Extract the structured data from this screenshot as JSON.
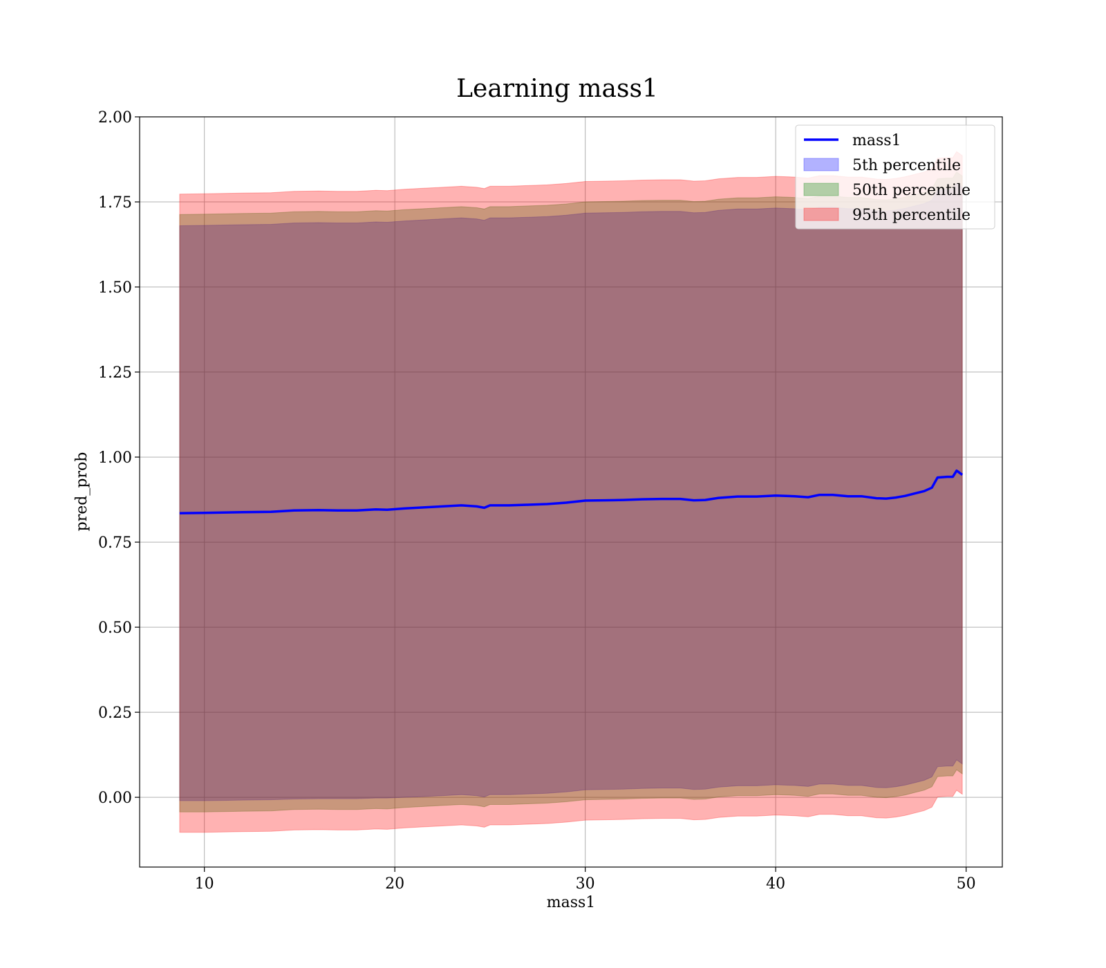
{
  "chart_data": {
    "type": "line",
    "title": "Learning mass1",
    "xlabel": "mass1",
    "ylabel": "pred_prob",
    "xlim": [
      6.6,
      51.9
    ],
    "ylim": [
      -0.205,
      2.0
    ],
    "xticks": [
      10,
      20,
      30,
      40,
      50
    ],
    "yticks": [
      0.0,
      0.25,
      0.5,
      0.75,
      1.0,
      1.25,
      1.5,
      1.75,
      2.0
    ],
    "xtick_labels": [
      "10",
      "20",
      "30",
      "40",
      "50"
    ],
    "ytick_labels": [
      "0.00",
      "0.25",
      "0.50",
      "0.75",
      "1.00",
      "1.25",
      "1.50",
      "1.75",
      "2.00"
    ],
    "grid": true,
    "legend_position": "top-right",
    "x": [
      8.7,
      10,
      11,
      12,
      13.5,
      14.7,
      16,
      17,
      18,
      19,
      19.6,
      20.5,
      21.5,
      22.5,
      23.5,
      24.3,
      24.7,
      25,
      26,
      27,
      28,
      29,
      30,
      31,
      32,
      33,
      34,
      35,
      35.7,
      36.3,
      37,
      38,
      39,
      40,
      41,
      41.7,
      42.3,
      43,
      43.8,
      44.5,
      45.3,
      45.8,
      46.3,
      46.8,
      47.3,
      47.8,
      48.2,
      48.5,
      49,
      49.3,
      49.5,
      49.8
    ],
    "series": [
      {
        "name": "mass1",
        "type": "line",
        "color": "#0000ff",
        "values": [
          0.835,
          0.836,
          0.837,
          0.838,
          0.839,
          0.843,
          0.844,
          0.843,
          0.843,
          0.846,
          0.845,
          0.849,
          0.852,
          0.855,
          0.858,
          0.855,
          0.851,
          0.858,
          0.858,
          0.86,
          0.862,
          0.866,
          0.872,
          0.873,
          0.874,
          0.876,
          0.877,
          0.877,
          0.873,
          0.874,
          0.88,
          0.884,
          0.884,
          0.887,
          0.885,
          0.882,
          0.889,
          0.889,
          0.885,
          0.885,
          0.879,
          0.878,
          0.881,
          0.886,
          0.893,
          0.9,
          0.91,
          0.94,
          0.942,
          0.942,
          0.96,
          0.948
        ]
      },
      {
        "name": "5th percentile",
        "type": "band",
        "color": "#0000ff",
        "lower": [
          -0.01,
          -0.01,
          -0.009,
          -0.008,
          -0.007,
          -0.005,
          -0.004,
          -0.004,
          -0.004,
          -0.002,
          -0.002,
          0.0,
          0.002,
          0.005,
          0.008,
          0.005,
          0.001,
          0.008,
          0.008,
          0.01,
          0.012,
          0.016,
          0.022,
          0.023,
          0.024,
          0.026,
          0.027,
          0.027,
          0.023,
          0.024,
          0.03,
          0.034,
          0.034,
          0.037,
          0.035,
          0.032,
          0.039,
          0.039,
          0.035,
          0.035,
          0.029,
          0.028,
          0.031,
          0.036,
          0.043,
          0.05,
          0.06,
          0.09,
          0.092,
          0.092,
          0.11,
          0.098
        ],
        "upper": [
          1.68,
          1.681,
          1.682,
          1.683,
          1.684,
          1.688,
          1.689,
          1.688,
          1.688,
          1.691,
          1.69,
          1.694,
          1.697,
          1.7,
          1.703,
          1.7,
          1.696,
          1.703,
          1.703,
          1.705,
          1.707,
          1.711,
          1.717,
          1.718,
          1.719,
          1.721,
          1.722,
          1.722,
          1.718,
          1.719,
          1.725,
          1.729,
          1.729,
          1.732,
          1.73,
          1.727,
          1.734,
          1.734,
          1.73,
          1.73,
          1.724,
          1.723,
          1.726,
          1.731,
          1.738,
          1.745,
          1.755,
          1.785,
          1.787,
          1.787,
          1.805,
          1.793
        ]
      },
      {
        "name": "50th percentile",
        "type": "band",
        "color": "#008000",
        "lower": [
          -0.043,
          -0.043,
          -0.042,
          -0.041,
          -0.04,
          -0.036,
          -0.035,
          -0.036,
          -0.036,
          -0.033,
          -0.034,
          -0.03,
          -0.027,
          -0.024,
          -0.021,
          -0.024,
          -0.028,
          -0.021,
          -0.021,
          -0.019,
          -0.017,
          -0.013,
          -0.007,
          -0.006,
          -0.005,
          -0.003,
          -0.002,
          -0.002,
          -0.006,
          -0.005,
          0.001,
          0.005,
          0.005,
          0.008,
          0.006,
          0.003,
          0.01,
          0.01,
          0.006,
          0.006,
          0.0,
          -0.001,
          0.002,
          0.007,
          0.014,
          0.021,
          0.031,
          0.061,
          0.063,
          0.063,
          0.081,
          0.069
        ],
        "upper": [
          1.713,
          1.714,
          1.715,
          1.716,
          1.717,
          1.721,
          1.722,
          1.721,
          1.721,
          1.724,
          1.723,
          1.727,
          1.73,
          1.733,
          1.736,
          1.733,
          1.729,
          1.736,
          1.736,
          1.738,
          1.74,
          1.744,
          1.75,
          1.751,
          1.752,
          1.754,
          1.755,
          1.755,
          1.751,
          1.752,
          1.758,
          1.762,
          1.762,
          1.765,
          1.763,
          1.76,
          1.767,
          1.767,
          1.763,
          1.763,
          1.757,
          1.756,
          1.759,
          1.764,
          1.771,
          1.778,
          1.788,
          1.818,
          1.82,
          1.82,
          1.838,
          1.826
        ]
      },
      {
        "name": "95th percentile",
        "type": "band",
        "color": "#ff0000",
        "lower": [
          -0.103,
          -0.103,
          -0.102,
          -0.101,
          -0.1,
          -0.096,
          -0.095,
          -0.096,
          -0.096,
          -0.093,
          -0.094,
          -0.09,
          -0.087,
          -0.084,
          -0.081,
          -0.084,
          -0.088,
          -0.081,
          -0.081,
          -0.079,
          -0.077,
          -0.073,
          -0.067,
          -0.066,
          -0.065,
          -0.063,
          -0.062,
          -0.062,
          -0.066,
          -0.065,
          -0.059,
          -0.055,
          -0.055,
          -0.052,
          -0.054,
          -0.057,
          -0.05,
          -0.05,
          -0.054,
          -0.054,
          -0.06,
          -0.061,
          -0.058,
          -0.053,
          -0.046,
          -0.039,
          -0.029,
          0.001,
          0.003,
          0.003,
          0.021,
          0.009
        ],
        "upper": [
          1.773,
          1.774,
          1.775,
          1.776,
          1.777,
          1.781,
          1.782,
          1.781,
          1.781,
          1.784,
          1.783,
          1.787,
          1.79,
          1.793,
          1.796,
          1.793,
          1.789,
          1.796,
          1.796,
          1.798,
          1.8,
          1.804,
          1.81,
          1.811,
          1.812,
          1.814,
          1.815,
          1.815,
          1.811,
          1.812,
          1.818,
          1.822,
          1.822,
          1.825,
          1.823,
          1.82,
          1.827,
          1.827,
          1.823,
          1.823,
          1.817,
          1.816,
          1.819,
          1.824,
          1.831,
          1.838,
          1.848,
          1.878,
          1.88,
          1.88,
          1.898,
          1.886
        ]
      }
    ]
  }
}
